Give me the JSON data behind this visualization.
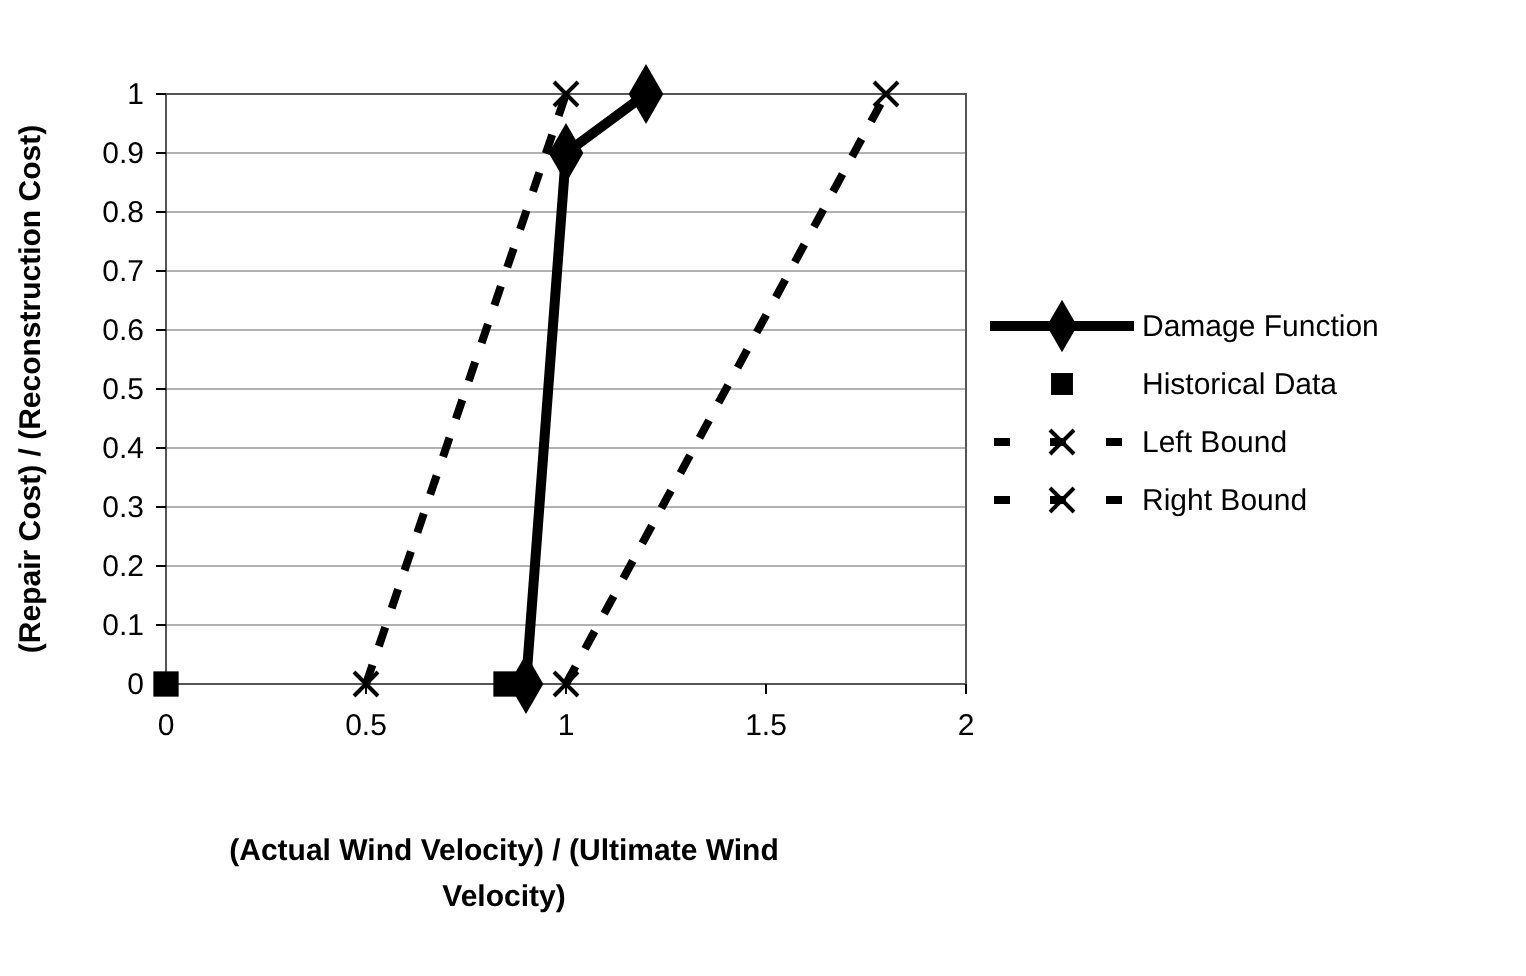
{
  "chart_data": {
    "type": "line",
    "xlabel": "(Actual Wind Velocity) / (Ultimate Wind Velocity)",
    "ylabel": "(Repair Cost) / (Reconstruction Cost)",
    "xlim": [
      0,
      2
    ],
    "xticks": [
      0,
      0.5,
      1,
      1.5,
      2
    ],
    "ylim": [
      0,
      1
    ],
    "yticks": [
      0,
      0.1,
      0.2,
      0.3,
      0.4,
      0.5,
      0.6,
      0.7,
      0.8,
      0.9,
      1
    ],
    "grid": "y",
    "legend": "right",
    "series": [
      {
        "name": "Damage Function",
        "type": "line",
        "color": "#000000",
        "marker": "diamond",
        "line_style": "solid",
        "x": [
          0.9,
          1,
          1.2
        ],
        "values": [
          0,
          0.9,
          1
        ]
      },
      {
        "name": "Historical Data",
        "type": "scatter",
        "color": "#000000",
        "marker": "square",
        "x": [
          0,
          0.85
        ],
        "values": [
          0,
          0
        ]
      },
      {
        "name": "Left Bound",
        "type": "line",
        "color": "#000000",
        "marker": "cross",
        "line_style": "dashed",
        "x": [
          0.5,
          1
        ],
        "values": [
          0,
          1
        ]
      },
      {
        "name": "Right Bound",
        "type": "line",
        "color": "#000000",
        "marker": "cross",
        "line_style": "dashed",
        "x": [
          1,
          1.8
        ],
        "values": [
          0,
          1
        ]
      }
    ]
  }
}
